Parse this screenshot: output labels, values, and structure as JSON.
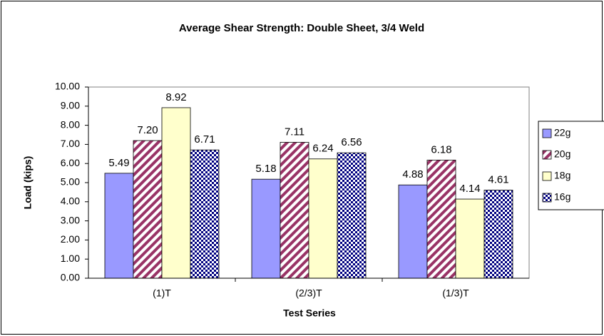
{
  "chart_data": {
    "type": "bar",
    "title": "Average Shear Strength: Double Sheet, 3/4 Weld",
    "x_label": "Test Series",
    "y_label": "Load (kips)",
    "categories": [
      "(1)T",
      "(2/3)T",
      "(1/3)T"
    ],
    "series": [
      {
        "name": "22g",
        "color": "#9999ff",
        "pattern": "solid",
        "values": [
          5.49,
          5.18,
          4.88
        ]
      },
      {
        "name": "20g",
        "color": "#993366",
        "pattern": "diagonal",
        "values": [
          7.2,
          7.11,
          6.18
        ],
        "value_labels": [
          "7.20",
          "7.11",
          "6.18"
        ]
      },
      {
        "name": "18g",
        "color": "#ffffcc",
        "pattern": "solid",
        "values": [
          8.92,
          6.24,
          4.14
        ]
      },
      {
        "name": "16g",
        "color": "#000080",
        "pattern": "checker",
        "values": [
          6.71,
          6.56,
          4.61
        ]
      }
    ],
    "ylim": [
      0,
      10
    ],
    "yticks": [
      {
        "value": 0,
        "label": "0.00"
      },
      {
        "value": 1,
        "label": "1.00"
      },
      {
        "value": 2,
        "label": "2.00"
      },
      {
        "value": 3,
        "label": "3.00"
      },
      {
        "value": 4,
        "label": "4.00"
      },
      {
        "value": 5,
        "label": "5.00"
      },
      {
        "value": 6,
        "label": "6.00"
      },
      {
        "value": 7,
        "label": "7.00"
      },
      {
        "value": 8,
        "label": "8.00"
      },
      {
        "value": 9,
        "label": "9.00"
      },
      {
        "value": 10,
        "label": "10.00"
      }
    ],
    "grid": false,
    "legend": "right"
  }
}
